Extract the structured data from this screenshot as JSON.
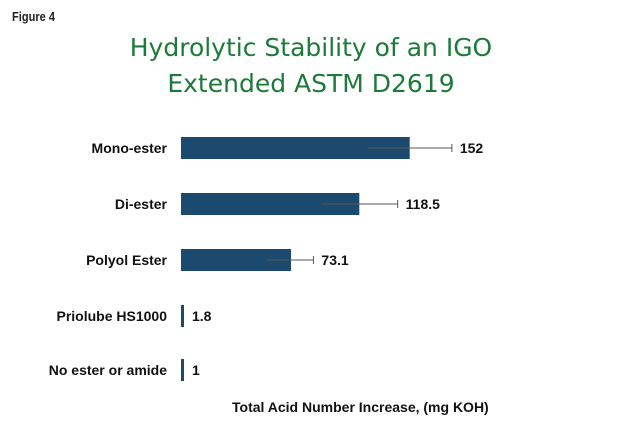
{
  "figure_label": "Figure 4",
  "chart_data": {
    "type": "bar",
    "orientation": "horizontal",
    "title": "Hydrolytic Stability of an IGO Extended ASTM D2619",
    "title_lines": [
      "Hydrolytic Stability of an IGO",
      "Extended ASTM D2619"
    ],
    "xlabel": "Total Acid Number Increase, (mg KOH)",
    "ylabel": "",
    "categories": [
      "Mono-ester",
      "Di-ester",
      "Polyol Ester",
      "Priolube HS1000",
      "No ester or amide"
    ],
    "values": [
      152,
      118.5,
      73.1,
      1.8,
      1
    ],
    "value_labels": [
      "152",
      "118.5",
      "73.1",
      "1.8",
      "1"
    ],
    "error_bars": [
      {
        "low": 124,
        "high": 180
      },
      {
        "low": 93,
        "high": 144
      },
      {
        "low": 57,
        "high": 88
      },
      {
        "low": 1.8,
        "high": 1.8
      },
      {
        "low": 1,
        "high": 1
      }
    ],
    "xlim": [
      0,
      210
    ],
    "bar_color": "#1b4a6e",
    "grid": false,
    "legend": "none"
  }
}
